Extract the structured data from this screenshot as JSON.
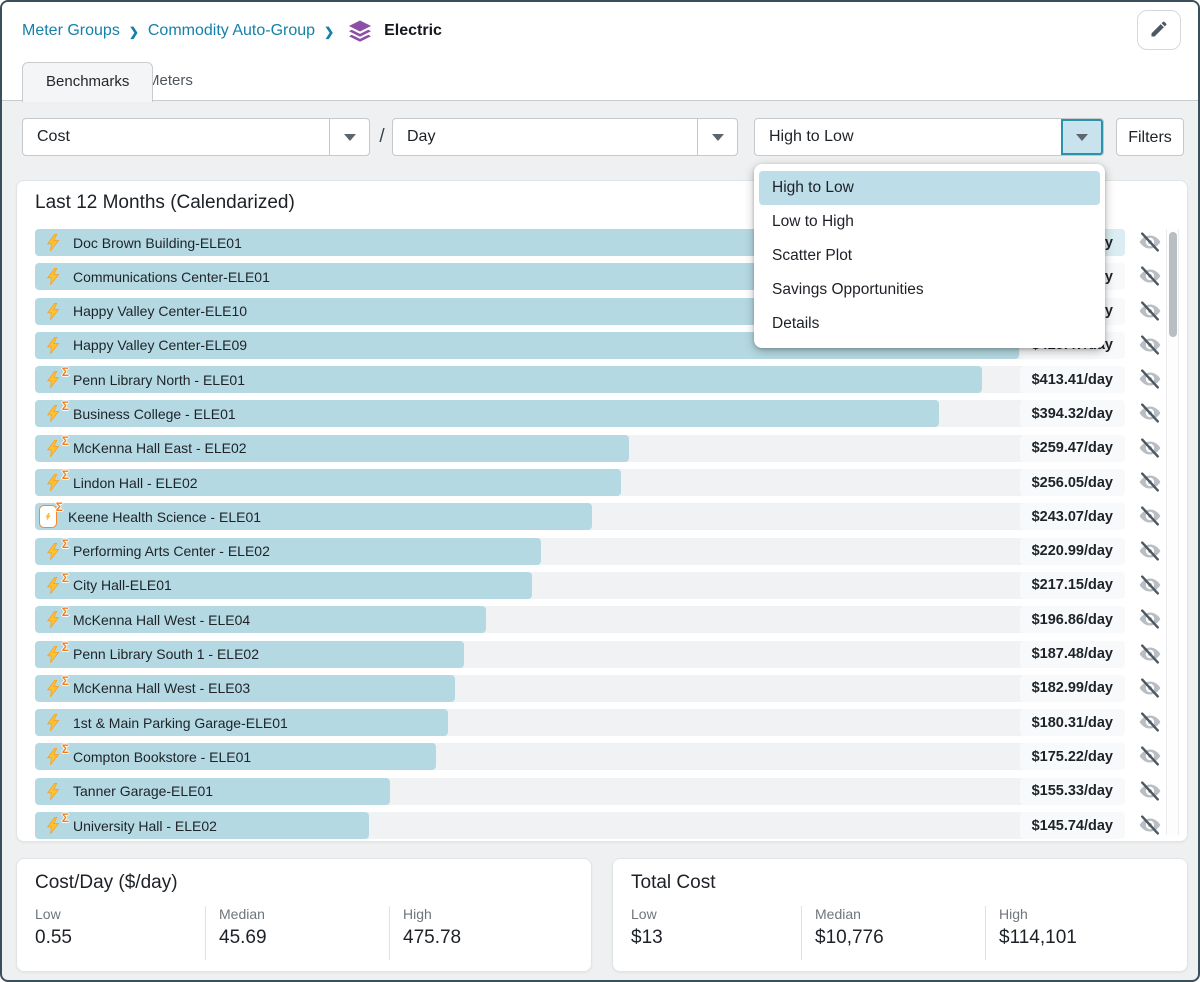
{
  "breadcrumb": {
    "items": [
      "Meter Groups",
      "Commodity Auto-Group"
    ],
    "separator": "❯",
    "current": "Electric"
  },
  "tabs": [
    {
      "label": "Benchmarks",
      "active": true
    },
    {
      "label": "Meters",
      "active": false
    }
  ],
  "toolbar": {
    "metric": "Cost",
    "slash": "/",
    "per": "Day",
    "view": "High to Low",
    "filters_label": "Filters"
  },
  "menu": {
    "options": [
      {
        "label": "High to Low",
        "selected": true
      },
      {
        "label": "Low to High",
        "selected": false
      },
      {
        "label": "Scatter Plot",
        "selected": false
      },
      {
        "label": "Savings Opportunities",
        "selected": false
      },
      {
        "label": "Details",
        "selected": false
      }
    ]
  },
  "chart": {
    "title": "Last 12 Months (Calendarized)",
    "rows": [
      {
        "name": "Doc Brown Building-ELE01",
        "value": "$475.78/day",
        "pct": 100,
        "icon": "bolt",
        "boxed": false
      },
      {
        "name": "Communications Center-ELE01",
        "value": "$457.63/day",
        "pct": 96.2,
        "icon": "bolt",
        "boxed": false
      },
      {
        "name": "Happy Valley Center-ELE10",
        "value": "$441.28/day",
        "pct": 92.8,
        "icon": "bolt",
        "boxed": false
      },
      {
        "name": "Happy Valley Center-ELE09",
        "value": "$429.47/day",
        "pct": 90.3,
        "icon": "bolt",
        "boxed": false
      },
      {
        "name": "Penn Library North - ELE01",
        "value": "$413.41/day",
        "pct": 86.9,
        "icon": "bolt-sigma",
        "boxed": false
      },
      {
        "name": "Business College - ELE01",
        "value": "$394.32/day",
        "pct": 82.9,
        "icon": "bolt-sigma",
        "boxed": false
      },
      {
        "name": "McKenna Hall East - ELE02",
        "value": "$259.47/day",
        "pct": 54.5,
        "icon": "bolt-sigma",
        "boxed": false
      },
      {
        "name": "Lindon Hall - ELE02",
        "value": "$256.05/day",
        "pct": 53.8,
        "icon": "bolt-sigma",
        "boxed": false
      },
      {
        "name": "Keene Health Science - ELE01",
        "value": "$243.07/day",
        "pct": 51.1,
        "icon": "bolt-sigma",
        "boxed": true
      },
      {
        "name": "Performing Arts Center - ELE02",
        "value": "$220.99/day",
        "pct": 46.4,
        "icon": "bolt-sigma",
        "boxed": false
      },
      {
        "name": "City Hall-ELE01",
        "value": "$217.15/day",
        "pct": 45.6,
        "icon": "bolt-sigma",
        "boxed": false
      },
      {
        "name": "McKenna Hall West - ELE04",
        "value": "$196.86/day",
        "pct": 41.4,
        "icon": "bolt-sigma",
        "boxed": false
      },
      {
        "name": "Penn Library South 1 - ELE02",
        "value": "$187.48/day",
        "pct": 39.4,
        "icon": "bolt-sigma",
        "boxed": false
      },
      {
        "name": "McKenna Hall West - ELE03",
        "value": "$182.99/day",
        "pct": 38.5,
        "icon": "bolt-sigma",
        "boxed": false
      },
      {
        "name": "1st & Main Parking Garage-ELE01",
        "value": "$180.31/day",
        "pct": 37.9,
        "icon": "bolt",
        "boxed": false
      },
      {
        "name": "Compton Bookstore - ELE01",
        "value": "$175.22/day",
        "pct": 36.8,
        "icon": "bolt-sigma",
        "boxed": false
      },
      {
        "name": "Tanner Garage-ELE01",
        "value": "$155.33/day",
        "pct": 32.6,
        "icon": "bolt",
        "boxed": false
      },
      {
        "name": "University Hall - ELE02",
        "value": "$145.74/day",
        "pct": 30.6,
        "icon": "bolt-sigma",
        "boxed": false
      }
    ]
  },
  "chart_data": {
    "type": "bar",
    "orientation": "horizontal",
    "title": "Last 12 Months (Calendarized)",
    "unit": "$/day",
    "xlim": [
      0,
      475.78
    ],
    "categories": [
      "Doc Brown Building-ELE01",
      "Communications Center-ELE01",
      "Happy Valley Center-ELE10",
      "Happy Valley Center-ELE09",
      "Penn Library North - ELE01",
      "Business College - ELE01",
      "McKenna Hall East - ELE02",
      "Lindon Hall - ELE02",
      "Keene Health Science - ELE01",
      "Performing Arts Center - ELE02",
      "City Hall-ELE01",
      "McKenna Hall West - ELE04",
      "Penn Library South 1 - ELE02",
      "McKenna Hall West - ELE03",
      "1st & Main Parking Garage-ELE01",
      "Compton Bookstore - ELE01",
      "Tanner Garage-ELE01",
      "University Hall - ELE02"
    ],
    "values": [
      475.78,
      457.63,
      441.28,
      429.47,
      413.41,
      394.32,
      259.47,
      256.05,
      243.07,
      220.99,
      217.15,
      196.86,
      187.48,
      182.99,
      180.31,
      175.22,
      155.33,
      145.74
    ]
  },
  "cards": [
    {
      "title": "Cost/Day ($/day)",
      "stats": [
        {
          "label": "Low",
          "value": "0.55"
        },
        {
          "label": "Median",
          "value": "45.69"
        },
        {
          "label": "High",
          "value": "475.78"
        }
      ]
    },
    {
      "title": "Total Cost",
      "stats": [
        {
          "label": "Low",
          "value": "$13"
        },
        {
          "label": "Median",
          "value": "$10,776"
        },
        {
          "label": "High",
          "value": "$114,101"
        }
      ]
    }
  ],
  "colors": {
    "accent": "#1581a8",
    "bar": "#b5d9e3",
    "menu_selected": "#bddde8",
    "arrow_active_border": "#2b92ac",
    "layers_icon": "#8c4fa6",
    "bolt": "#ffc12e",
    "sigma": "#f07f1a",
    "frame_border": "#3a4f5c"
  }
}
